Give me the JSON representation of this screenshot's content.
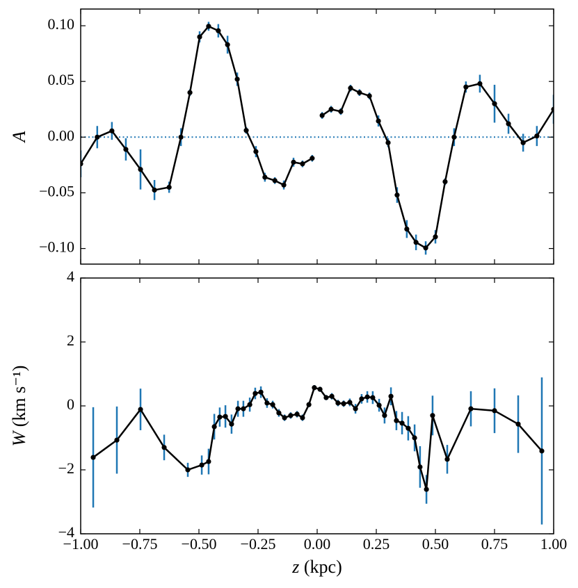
{
  "chart_data": [
    {
      "type": "errorbar_line",
      "ylabel": {
        "symbol": "A"
      },
      "x": [
        -1.0,
        -0.93,
        -0.868,
        -0.809,
        -0.747,
        -0.688,
        -0.626,
        -0.576,
        -0.538,
        -0.497,
        -0.459,
        -0.418,
        -0.379,
        -0.338,
        -0.3,
        -0.259,
        -0.221,
        -0.179,
        -0.141,
        -0.1,
        -0.062,
        -0.021,
        null,
        0.021,
        0.059,
        0.1,
        0.141,
        0.179,
        0.221,
        0.259,
        0.3,
        0.338,
        0.379,
        0.418,
        0.459,
        0.5,
        0.541,
        0.579,
        0.629,
        0.688,
        0.75,
        0.809,
        0.871,
        0.929,
        1.0
      ],
      "series": [
        {
          "color": "#000000",
          "error_color": "#1f77b4",
          "values": [
            -0.024,
            0.0,
            0.0056,
            -0.011,
            -0.029,
            -0.0475,
            -0.045,
            0.0,
            0.04,
            0.09,
            0.0995,
            0.0955,
            0.083,
            0.052,
            0.006,
            -0.013,
            -0.036,
            -0.039,
            -0.043,
            -0.0225,
            -0.024,
            -0.019,
            null,
            0.0195,
            0.025,
            0.023,
            0.044,
            0.04,
            0.037,
            0.0145,
            -0.005,
            -0.052,
            -0.0825,
            -0.0945,
            -0.0995,
            -0.0895,
            -0.04,
            0.0,
            0.045,
            0.048,
            0.03,
            0.012,
            -0.005,
            0.001,
            0.025
          ],
          "errors": [
            0.012,
            0.01,
            0.008,
            0.01,
            0.018,
            0.009,
            0.005,
            0.008,
            0.003,
            0.005,
            0.004,
            0.006,
            0.008,
            0.006,
            0.003,
            0.005,
            0.004,
            0.003,
            0.004,
            0.004,
            0.003,
            0.003,
            null,
            0.003,
            0.003,
            0.003,
            0.003,
            0.003,
            0.003,
            0.005,
            0.004,
            0.007,
            0.008,
            0.007,
            0.006,
            0.006,
            0.003,
            0.008,
            0.005,
            0.008,
            0.017,
            0.009,
            0.008,
            0.009,
            0.013
          ]
        }
      ],
      "hline": {
        "value": 0,
        "color": "#1f77b4",
        "style": "dotted"
      },
      "xlim": [
        -1.0,
        1.0
      ],
      "xticks": [
        -1.0,
        -0.75,
        -0.5,
        -0.25,
        0.0,
        0.25,
        0.5,
        0.75,
        1.0
      ],
      "show_xticklabels": false,
      "ylim": [
        -0.114,
        0.115
      ],
      "yticks": [
        {
          "value": -0.1,
          "label": "−0.10"
        },
        {
          "value": -0.05,
          "label": "−0.05"
        },
        {
          "value": 0,
          "label": "0.00"
        },
        {
          "value": 0.05,
          "label": "0.05"
        },
        {
          "value": 0.1,
          "label": "0.10"
        }
      ]
    },
    {
      "type": "errorbar_line",
      "ylabel": {
        "symbol": "W",
        "unit": "(km s⁻¹)"
      },
      "xlabel": {
        "symbol": "z",
        "unit": "(kpc)"
      },
      "x": [
        -0.947,
        -0.847,
        -0.747,
        -0.647,
        -0.547,
        -0.488,
        -0.459,
        -0.435,
        -0.412,
        -0.388,
        -0.362,
        -0.335,
        -0.312,
        -0.285,
        -0.262,
        -0.238,
        -0.212,
        -0.188,
        -0.162,
        -0.138,
        -0.112,
        -0.085,
        -0.062,
        -0.035,
        -0.012,
        0.012,
        0.038,
        0.062,
        0.088,
        0.112,
        0.138,
        0.162,
        0.188,
        0.212,
        0.235,
        0.262,
        0.285,
        0.312,
        0.335,
        0.359,
        0.385,
        0.412,
        0.435,
        0.462,
        0.488,
        0.55,
        0.65,
        0.75,
        0.85,
        0.95
      ],
      "series": [
        {
          "color": "#000000",
          "error_color": "#1f77b4",
          "values": [
            -1.61,
            -1.07,
            -0.11,
            -1.3,
            -2.0,
            -1.85,
            -1.74,
            -0.65,
            -0.35,
            -0.33,
            -0.57,
            -0.09,
            -0.09,
            0.04,
            0.39,
            0.43,
            0.09,
            0.04,
            -0.22,
            -0.37,
            -0.3,
            -0.26,
            -0.37,
            0.04,
            0.57,
            0.52,
            0.26,
            0.3,
            0.09,
            0.07,
            0.11,
            -0.09,
            0.22,
            0.28,
            0.26,
            0.02,
            -0.3,
            0.3,
            -0.46,
            -0.54,
            -0.7,
            -1.0,
            -1.91,
            -2.61,
            -0.3,
            -1.67,
            -0.09,
            -0.15,
            -0.57,
            -1.41
          ],
          "errors": [
            1.57,
            1.05,
            0.65,
            0.4,
            0.22,
            0.3,
            0.4,
            0.4,
            0.3,
            0.35,
            0.3,
            0.25,
            0.25,
            0.22,
            0.18,
            0.18,
            0.15,
            0.12,
            0.12,
            0.1,
            0.1,
            0.1,
            0.1,
            0.08,
            0.08,
            0.08,
            0.08,
            0.1,
            0.1,
            0.1,
            0.12,
            0.15,
            0.15,
            0.18,
            0.2,
            0.2,
            0.25,
            0.28,
            0.3,
            0.35,
            0.38,
            0.42,
            0.65,
            0.45,
            0.62,
            0.45,
            0.55,
            0.7,
            0.9,
            2.3
          ]
        }
      ],
      "xlim": [
        -1.0,
        1.0
      ],
      "xticks": [
        {
          "value": -1.0,
          "label": "−1.00"
        },
        {
          "value": -0.75,
          "label": "−0.75"
        },
        {
          "value": -0.5,
          "label": "−0.50"
        },
        {
          "value": -0.25,
          "label": "−0.25"
        },
        {
          "value": 0,
          "label": "0.00"
        },
        {
          "value": 0.25,
          "label": "0.25"
        },
        {
          "value": 0.5,
          "label": "0.50"
        },
        {
          "value": 0.75,
          "label": "0.75"
        },
        {
          "value": 1.0,
          "label": "1.00"
        }
      ],
      "show_xticklabels": true,
      "ylim": [
        -4,
        4
      ],
      "yticks": [
        {
          "value": -4,
          "label": "−4"
        },
        {
          "value": -2,
          "label": "−2"
        },
        0,
        2,
        4
      ]
    }
  ]
}
